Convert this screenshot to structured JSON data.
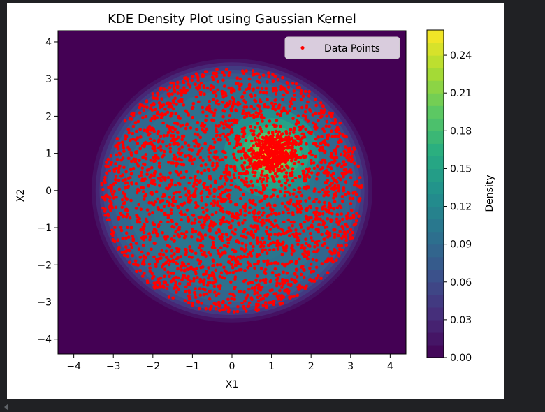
{
  "chart_data": {
    "type": "heatmap",
    "title": "KDE Density Plot using Gaussian Kernel",
    "xlabel": "X1",
    "ylabel": "X2",
    "xlim": [
      -4.4,
      4.4
    ],
    "ylim": [
      -4.4,
      4.3
    ],
    "x_ticks": [
      -4,
      -3,
      -2,
      -1,
      0,
      1,
      2,
      3,
      4
    ],
    "y_ticks": [
      -4,
      -3,
      -2,
      -1,
      0,
      1,
      2,
      3,
      4
    ],
    "legend": {
      "placement": "top-right",
      "entries": [
        {
          "label": "Data Points",
          "color": "#ff0000"
        }
      ]
    },
    "colorbar": {
      "label": "Density",
      "min": 0.0,
      "max": 0.26,
      "ticks": [
        0.0,
        0.03,
        0.06,
        0.09,
        0.12,
        0.15,
        0.18,
        0.21,
        0.24
      ],
      "tick_labels": [
        "0.00",
        "0.03",
        "0.06",
        "0.09",
        "0.12",
        "0.15",
        "0.18",
        "0.21",
        "0.24"
      ],
      "colormap": "viridis"
    },
    "density_model": {
      "background_level": 0.0,
      "uniform_disk_radius": 3.3,
      "uniform_density": 0.1,
      "peak_center": [
        1.0,
        1.0
      ],
      "peak_density": 0.25
    },
    "scatter": {
      "series_name": "Data Points",
      "color": "#ff0000",
      "approx_count": 3000,
      "distribution": "uniform disk radius 3.3 centred at (0,0) plus dense cluster near (1,1)"
    }
  }
}
